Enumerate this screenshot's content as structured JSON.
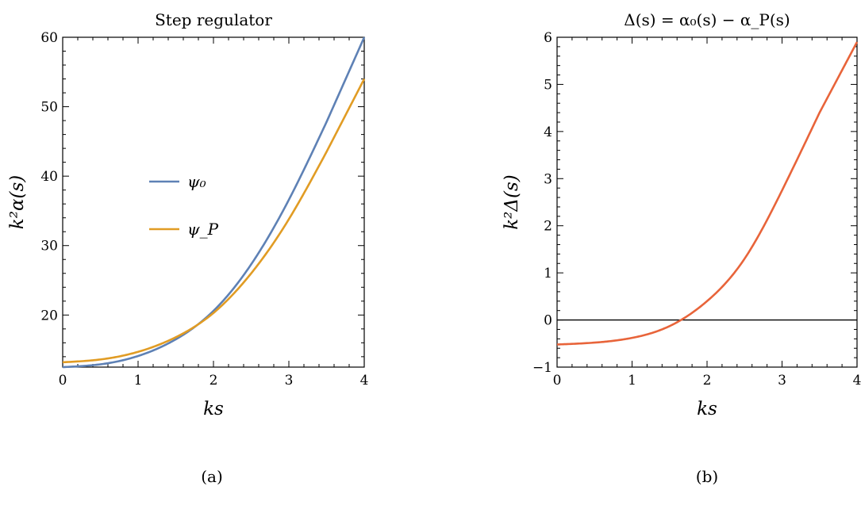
{
  "chart_data": [
    {
      "type": "line",
      "title": "Step regulator",
      "xlabel": "ks",
      "ylabel": "k²α(s)",
      "xlim": [
        0,
        4
      ],
      "ylim": [
        12.5,
        60
      ],
      "xticks": [
        0,
        1,
        2,
        3,
        4
      ],
      "yticks": [
        20,
        30,
        40,
        50,
        60
      ],
      "grid": false,
      "legend_position": "center-left",
      "panel_label": "(a)",
      "x": [
        0,
        0.5,
        1,
        1.5,
        2,
        2.5,
        3,
        3.5,
        4
      ],
      "series": [
        {
          "name": "ψ₀",
          "color": "#5e81b5",
          "values": [
            12.5,
            12.9,
            14.1,
            16.5,
            20.6,
            27.3,
            36.6,
            47.8,
            60.0
          ]
        },
        {
          "name": "ψ_P",
          "color": "#e19c24",
          "values": [
            13.2,
            13.6,
            14.7,
            16.8,
            20.3,
            26.0,
            33.8,
            43.5,
            54.0
          ]
        }
      ]
    },
    {
      "type": "line",
      "title": "Δ(s) = α₀(s) − α_P(s)",
      "xlabel": "ks",
      "ylabel": "k²Δ(s)",
      "xlim": [
        0,
        4
      ],
      "ylim": [
        -1,
        6
      ],
      "xticks": [
        0,
        1,
        2,
        3,
        4
      ],
      "yticks": [
        -1,
        0,
        1,
        2,
        3,
        4,
        5,
        6
      ],
      "grid": false,
      "panel_label": "(b)",
      "reference_line_y": 0,
      "x": [
        0,
        0.5,
        1,
        1.5,
        2,
        2.5,
        3,
        3.5,
        4
      ],
      "series": [
        {
          "color": "#e8643a",
          "values": [
            -0.52,
            -0.48,
            -0.38,
            -0.13,
            0.4,
            1.3,
            2.75,
            4.4,
            5.9
          ]
        }
      ]
    }
  ]
}
